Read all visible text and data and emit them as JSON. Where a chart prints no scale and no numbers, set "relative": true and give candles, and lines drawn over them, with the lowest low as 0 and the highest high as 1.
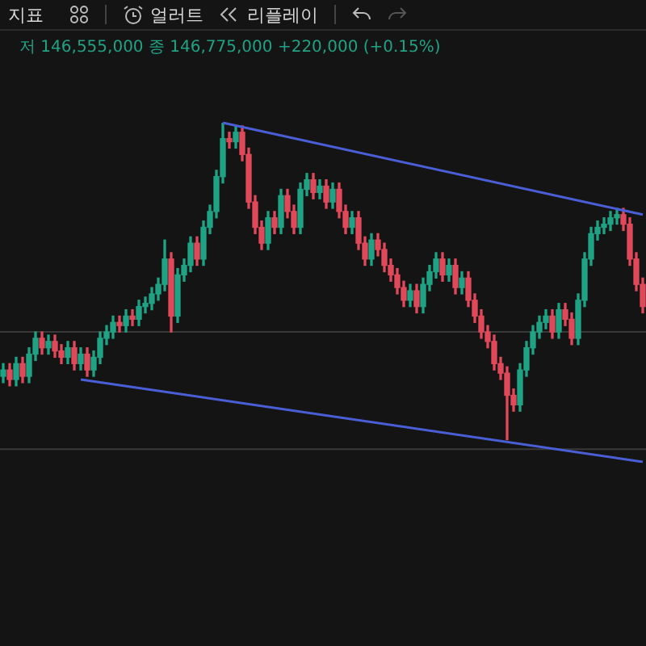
{
  "chart_data": {
    "type": "candlestick",
    "relative": true,
    "annotations": [
      "지표",
      "얼러트",
      "리플레이",
      "저 146,555,000 종 146,775,000 +220,000 (+0.15%)"
    ],
    "categories": [
      null,
      null,
      null,
      null,
      null,
      null,
      null,
      null,
      null,
      null,
      null,
      null,
      null,
      null,
      null,
      null,
      null,
      null,
      null,
      null,
      null,
      null,
      null,
      null,
      null,
      null,
      null,
      null,
      null,
      null,
      null,
      null,
      null,
      null,
      null,
      null,
      null,
      null,
      null,
      null,
      null,
      null,
      null,
      null,
      null,
      null,
      null,
      null,
      null,
      null,
      null,
      null,
      null,
      null,
      null,
      null,
      null,
      null,
      null,
      null,
      null,
      null,
      null,
      null,
      null,
      null,
      null,
      null,
      null,
      null,
      null,
      null,
      null,
      null,
      null,
      null,
      null,
      null,
      null,
      null,
      null,
      null,
      null,
      null,
      null,
      null,
      null,
      null,
      null,
      null,
      null,
      null,
      null,
      null,
      null,
      null,
      null,
      null,
      null,
      null
    ],
    "ohlc": [
      [
        0.2,
        0.24,
        0.18,
        0.22
      ],
      [
        0.22,
        0.24,
        0.17,
        0.19
      ],
      [
        0.19,
        0.26,
        0.17,
        0.24
      ],
      [
        0.24,
        0.26,
        0.18,
        0.2
      ],
      [
        0.2,
        0.29,
        0.18,
        0.27
      ],
      [
        0.27,
        0.34,
        0.25,
        0.32
      ],
      [
        0.32,
        0.34,
        0.27,
        0.29
      ],
      [
        0.29,
        0.33,
        0.27,
        0.31
      ],
      [
        0.31,
        0.33,
        0.26,
        0.28
      ],
      [
        0.28,
        0.3,
        0.24,
        0.26
      ],
      [
        0.26,
        0.31,
        0.24,
        0.29
      ],
      [
        0.29,
        0.31,
        0.22,
        0.24
      ],
      [
        0.24,
        0.29,
        0.22,
        0.27
      ],
      [
        0.27,
        0.29,
        0.2,
        0.22
      ],
      [
        0.22,
        0.28,
        0.2,
        0.26
      ],
      [
        0.26,
        0.34,
        0.24,
        0.32
      ],
      [
        0.32,
        0.36,
        0.3,
        0.34
      ],
      [
        0.34,
        0.39,
        0.32,
        0.37
      ],
      [
        0.37,
        0.39,
        0.34,
        0.36
      ],
      [
        0.36,
        0.41,
        0.34,
        0.39
      ],
      [
        0.39,
        0.41,
        0.36,
        0.38
      ],
      [
        0.38,
        0.44,
        0.36,
        0.42
      ],
      [
        0.42,
        0.45,
        0.4,
        0.43
      ],
      [
        0.43,
        0.48,
        0.41,
        0.46
      ],
      [
        0.46,
        0.51,
        0.44,
        0.49
      ],
      [
        0.49,
        0.63,
        0.47,
        0.57
      ],
      [
        0.57,
        0.59,
        0.34,
        0.39
      ],
      [
        0.39,
        0.54,
        0.37,
        0.52
      ],
      [
        0.52,
        0.57,
        0.5,
        0.55
      ],
      [
        0.55,
        0.64,
        0.53,
        0.62
      ],
      [
        0.62,
        0.64,
        0.55,
        0.57
      ],
      [
        0.57,
        0.69,
        0.55,
        0.67
      ],
      [
        0.67,
        0.74,
        0.65,
        0.72
      ],
      [
        0.72,
        0.85,
        0.7,
        0.83
      ],
      [
        0.83,
        1,
        0.81,
        0.95
      ],
      [
        0.95,
        0.97,
        0.92,
        0.94
      ],
      [
        0.94,
        0.99,
        0.92,
        0.97
      ],
      [
        0.97,
        0.99,
        0.88,
        0.9
      ],
      [
        0.9,
        0.92,
        0.73,
        0.75
      ],
      [
        0.75,
        0.77,
        0.65,
        0.67
      ],
      [
        0.67,
        0.69,
        0.6,
        0.62
      ],
      [
        0.62,
        0.72,
        0.6,
        0.7
      ],
      [
        0.7,
        0.72,
        0.65,
        0.67
      ],
      [
        0.67,
        0.79,
        0.65,
        0.77
      ],
      [
        0.77,
        0.79,
        0.7,
        0.72
      ],
      [
        0.72,
        0.74,
        0.65,
        0.67
      ],
      [
        0.67,
        0.81,
        0.65,
        0.79
      ],
      [
        0.79,
        0.84,
        0.77,
        0.82
      ],
      [
        0.82,
        0.84,
        0.76,
        0.78
      ],
      [
        0.78,
        0.82,
        0.76,
        0.8
      ],
      [
        0.8,
        0.82,
        0.73,
        0.75
      ],
      [
        0.75,
        0.81,
        0.73,
        0.79
      ],
      [
        0.79,
        0.81,
        0.7,
        0.72
      ],
      [
        0.72,
        0.74,
        0.65,
        0.67
      ],
      [
        0.67,
        0.72,
        0.65,
        0.7
      ],
      [
        0.7,
        0.72,
        0.6,
        0.62
      ],
      [
        0.62,
        0.64,
        0.55,
        0.57
      ],
      [
        0.57,
        0.65,
        0.55,
        0.63
      ],
      [
        0.63,
        0.65,
        0.58,
        0.6
      ],
      [
        0.6,
        0.62,
        0.53,
        0.55
      ],
      [
        0.55,
        0.57,
        0.5,
        0.52
      ],
      [
        0.52,
        0.54,
        0.46,
        0.48
      ],
      [
        0.48,
        0.5,
        0.42,
        0.44
      ],
      [
        0.44,
        0.49,
        0.42,
        0.47
      ],
      [
        0.47,
        0.49,
        0.4,
        0.42
      ],
      [
        0.42,
        0.51,
        0.4,
        0.49
      ],
      [
        0.49,
        0.55,
        0.47,
        0.53
      ],
      [
        0.53,
        0.59,
        0.51,
        0.57
      ],
      [
        0.57,
        0.59,
        0.5,
        0.52
      ],
      [
        0.52,
        0.57,
        0.5,
        0.55
      ],
      [
        0.55,
        0.57,
        0.46,
        0.48
      ],
      [
        0.48,
        0.53,
        0.46,
        0.51
      ],
      [
        0.51,
        0.53,
        0.42,
        0.44
      ],
      [
        0.44,
        0.46,
        0.37,
        0.39
      ],
      [
        0.39,
        0.41,
        0.32,
        0.34
      ],
      [
        0.34,
        0.36,
        0.29,
        0.31
      ],
      [
        0.31,
        0.33,
        0.22,
        0.24
      ],
      [
        0.24,
        0.26,
        0.19,
        0.21
      ],
      [
        0.21,
        0.23,
        0,
        0.14
      ],
      [
        0.14,
        0.16,
        0.09,
        0.11
      ],
      [
        0.11,
        0.24,
        0.09,
        0.22
      ],
      [
        0.22,
        0.31,
        0.2,
        0.29
      ],
      [
        0.29,
        0.36,
        0.27,
        0.34
      ],
      [
        0.34,
        0.39,
        0.32,
        0.37
      ],
      [
        0.37,
        0.41,
        0.35,
        0.39
      ],
      [
        0.39,
        0.41,
        0.32,
        0.34
      ],
      [
        0.34,
        0.43,
        0.32,
        0.41
      ],
      [
        0.41,
        0.43,
        0.36,
        0.38
      ],
      [
        0.38,
        0.4,
        0.3,
        0.32
      ],
      [
        0.32,
        0.46,
        0.3,
        0.44
      ],
      [
        0.44,
        0.59,
        0.42,
        0.57
      ],
      [
        0.57,
        0.67,
        0.55,
        0.65
      ],
      [
        0.65,
        0.69,
        0.63,
        0.67
      ],
      [
        0.67,
        0.7,
        0.65,
        0.68
      ],
      [
        0.68,
        0.72,
        0.66,
        0.7
      ],
      [
        0.7,
        0.73,
        0.68,
        0.71
      ],
      [
        0.71,
        0.73,
        0.66,
        0.68
      ],
      [
        0.68,
        0.7,
        0.55,
        0.57
      ],
      [
        0.57,
        0.59,
        0.47,
        0.49
      ],
      [
        0.49,
        0.51,
        0.4,
        0.42
      ]
    ],
    "series": [
      {
        "type": "line",
        "color": "#4a5fd6",
        "values": [
          null,
          null,
          null,
          null,
          null,
          null,
          null,
          null,
          null,
          null,
          null,
          null,
          null,
          null,
          null,
          null,
          null,
          null,
          null,
          null,
          null,
          null,
          null,
          null,
          null,
          null,
          null,
          null,
          null,
          null,
          null,
          null,
          null,
          null,
          1,
          null,
          null,
          null,
          null,
          null,
          null,
          null,
          null,
          null,
          null,
          null,
          null,
          null,
          null,
          null,
          null,
          null,
          null,
          null,
          null,
          null,
          null,
          null,
          null,
          null,
          null,
          null,
          null,
          null,
          null,
          null,
          null,
          null,
          null,
          null,
          null,
          null,
          null,
          null,
          null,
          null,
          null,
          null,
          null,
          null,
          null,
          null,
          null,
          null,
          null,
          null,
          null,
          null,
          null,
          null,
          null,
          null,
          null,
          null,
          null,
          null,
          null,
          null,
          null,
          0.71
        ]
      },
      {
        "type": "line",
        "color": "#4a5fd6",
        "values": [
          null,
          null,
          null,
          null,
          null,
          null,
          null,
          null,
          null,
          null,
          null,
          null,
          0.19,
          null,
          null,
          null,
          null,
          null,
          null,
          null,
          null,
          null,
          null,
          null,
          null,
          null,
          null,
          null,
          null,
          null,
          null,
          null,
          null,
          null,
          null,
          null,
          null,
          null,
          null,
          null,
          null,
          null,
          null,
          null,
          null,
          null,
          null,
          null,
          null,
          null,
          null,
          null,
          null,
          null,
          null,
          null,
          null,
          null,
          null,
          null,
          null,
          null,
          null,
          null,
          null,
          null,
          null,
          null,
          null,
          null,
          null,
          null,
          null,
          null,
          null,
          null,
          null,
          null,
          null,
          null,
          null,
          null,
          null,
          null,
          null,
          null,
          null,
          null,
          null,
          null,
          null,
          null,
          null,
          null,
          null,
          null,
          null,
          null,
          null,
          -0.07
        ]
      }
    ],
    "ref_lines": [
      {
        "axis": "y",
        "value": 0.34,
        "color": "#383838"
      },
      {
        "axis": "y",
        "value": -0.03,
        "color": "#383838"
      }
    ]
  }
}
